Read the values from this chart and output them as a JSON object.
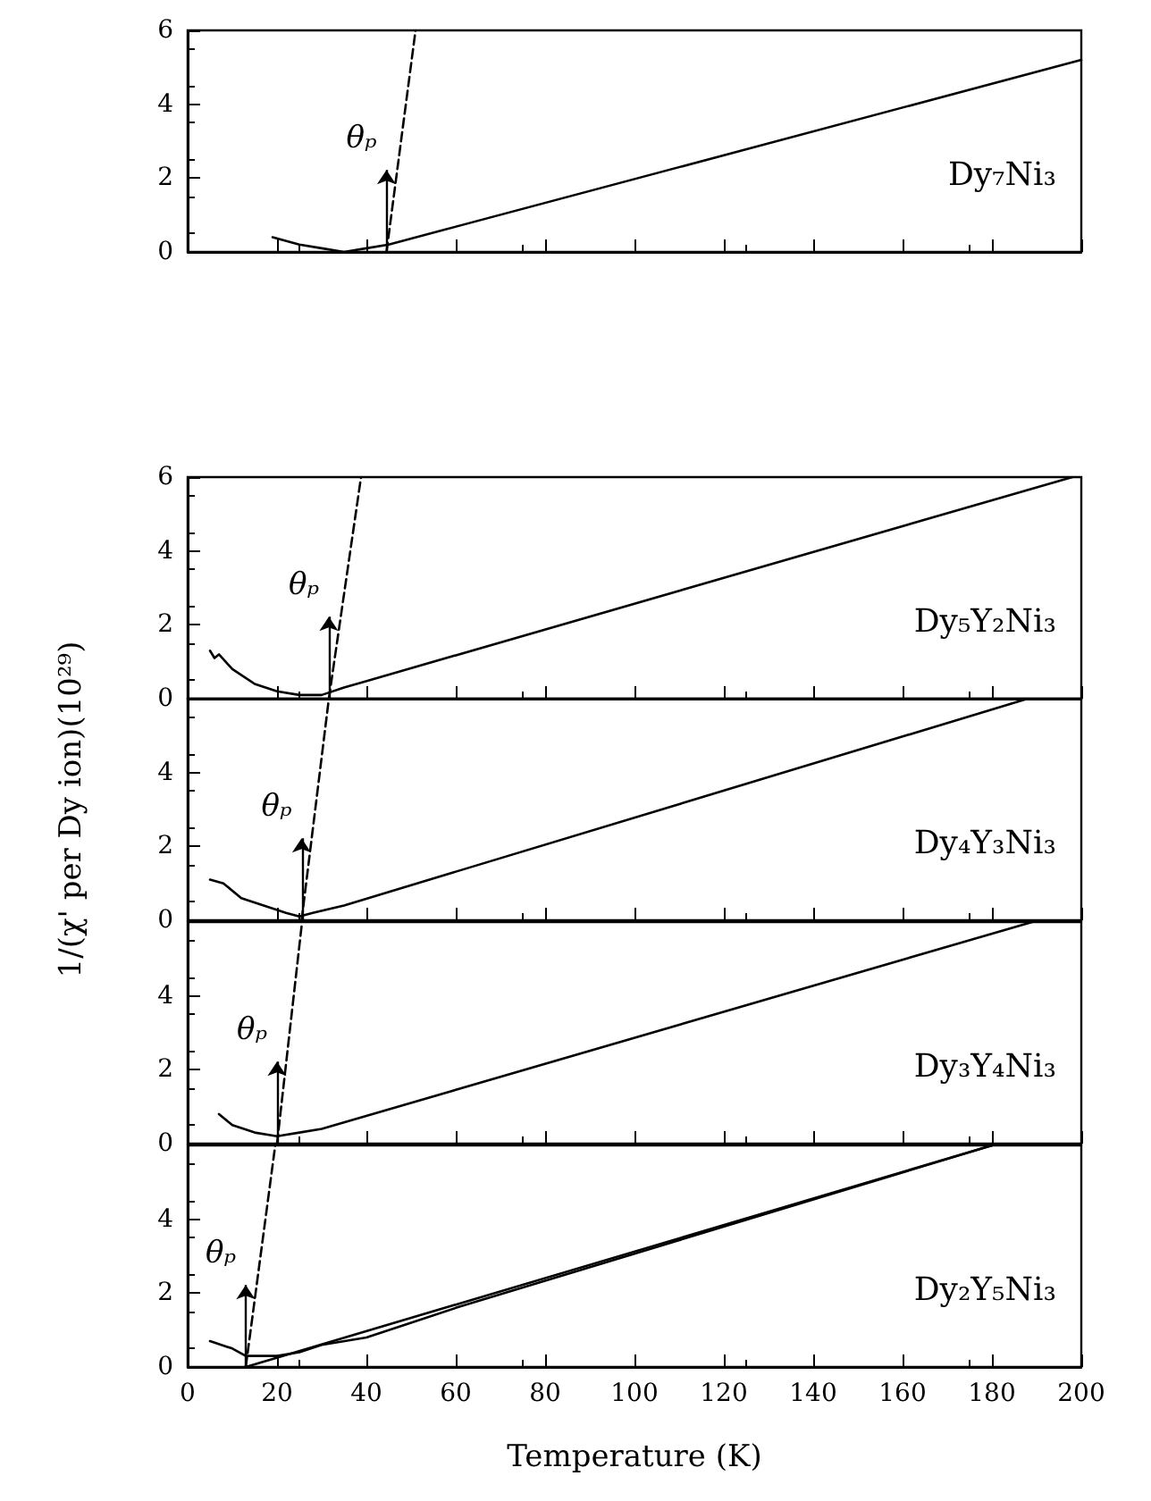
{
  "chart_data": [
    {
      "type": "line",
      "xlim": [
        0,
        200
      ],
      "xticks": [
        0,
        20,
        40,
        60,
        80,
        100,
        120,
        140,
        160,
        180,
        200
      ],
      "ylim": [
        0,
        6
      ],
      "yticks": [
        0,
        2,
        4,
        6
      ],
      "tick_labels": "y",
      "marker": "none",
      "annotations": [
        "Dy₇Ni₃",
        {
          "text": "θₚ",
          "x": 44.5,
          "y": 0
        }
      ],
      "series": [
        {
          "color": "#000000",
          "line_style": "solid",
          "x": [
            19,
            25,
            30,
            35,
            40,
            45,
            200
          ],
          "values": [
            0.4,
            0.2,
            0.1,
            0.0,
            0.1,
            0.2,
            5.2
          ]
        },
        {
          "color": "#000000",
          "line_style": "dashed",
          "x": [
            44.5,
            51
          ],
          "values": [
            0,
            6
          ]
        }
      ]
    },
    {
      "type": "line",
      "xlim": [
        0,
        200
      ],
      "xticks": [
        0,
        20,
        40,
        60,
        80,
        100,
        120,
        140,
        160,
        180,
        200
      ],
      "ylim": [
        0,
        6
      ],
      "yticks": [
        0,
        2,
        4,
        6
      ],
      "tick_labels": "y",
      "marker": "none",
      "annotations": [
        "Dy₅Y₂Ni₃",
        {
          "text": "θₚ",
          "x": 31.6,
          "y": 0
        }
      ],
      "series": [
        {
          "color": "#000000",
          "line_style": "solid",
          "x": [
            5,
            6,
            7,
            10,
            15,
            20,
            25,
            30,
            35,
            198
          ],
          "values": [
            1.3,
            1.1,
            1.2,
            0.8,
            0.4,
            0.2,
            0.1,
            0.1,
            0.3,
            6
          ]
        },
        {
          "color": "#000000",
          "line_style": "dashed",
          "x": [
            31.6,
            38.8
          ],
          "values": [
            0,
            6
          ]
        }
      ]
    },
    {
      "type": "line",
      "xlim": [
        0,
        200
      ],
      "xticks": [
        0,
        20,
        40,
        60,
        80,
        100,
        120,
        140,
        160,
        180,
        200
      ],
      "ylim": [
        0,
        6
      ],
      "yticks": [
        0,
        2,
        4
      ],
      "tick_labels": "y",
      "marker": "none",
      "ylabel": "1/(χ' per Dy ion)(10²⁹)",
      "annotations": [
        "Dy₄Y₃Ni₃",
        {
          "text": "θₚ",
          "x": 25.5,
          "y": 0
        }
      ],
      "series": [
        {
          "color": "#000000",
          "line_style": "solid",
          "x": [
            5,
            8,
            12,
            17,
            22,
            25,
            28,
            35,
            188
          ],
          "values": [
            1.1,
            1.0,
            0.6,
            0.4,
            0.2,
            0.1,
            0.2,
            0.4,
            6
          ]
        },
        {
          "color": "#000000",
          "line_style": "dashed",
          "x": [
            25.5,
            31.6
          ],
          "values": [
            0,
            6
          ]
        }
      ]
    },
    {
      "type": "line",
      "xlim": [
        0,
        200
      ],
      "xticks": [
        0,
        20,
        40,
        60,
        80,
        100,
        120,
        140,
        160,
        180,
        200
      ],
      "ylim": [
        0,
        6
      ],
      "yticks": [
        0,
        2,
        4
      ],
      "tick_labels": "y",
      "marker": "none",
      "annotations": [
        "Dy₃Y₄Ni₃",
        {
          "text": "θₚ",
          "x": 20,
          "y": 0
        }
      ],
      "series": [
        {
          "color": "#000000",
          "line_style": "solid",
          "x": [
            7,
            10,
            15,
            20,
            25,
            30,
            189
          ],
          "values": [
            0.8,
            0.5,
            0.3,
            0.2,
            0.3,
            0.4,
            6
          ]
        },
        {
          "color": "#000000",
          "line_style": "dashed",
          "x": [
            20,
            25.6
          ],
          "values": [
            0,
            6
          ]
        }
      ]
    },
    {
      "type": "line",
      "xlim": [
        0,
        200
      ],
      "xticks": [
        0,
        20,
        40,
        60,
        80,
        100,
        120,
        140,
        160,
        180,
        200
      ],
      "ylim": [
        0,
        6
      ],
      "yticks": [
        0,
        2,
        4
      ],
      "marker": "none",
      "xlabel": "Temperature (K)",
      "annotations": [
        "Dy₂Y₅Ni₃",
        {
          "text": "θₚ",
          "x": 13,
          "y": 0
        }
      ],
      "series": [
        {
          "color": "#000000",
          "line_style": "solid",
          "x": [
            5,
            10,
            13,
            17,
            20,
            25,
            30,
            40,
            50,
            60,
            180
          ],
          "values": [
            0.7,
            0.5,
            0.3,
            0.3,
            0.3,
            0.4,
            0.6,
            0.8,
            1.2,
            1.6,
            6
          ]
        },
        {
          "color": "#000000",
          "line_style": "solid",
          "x": [
            13,
            180
          ],
          "values": [
            0,
            6
          ]
        },
        {
          "color": "#000000",
          "line_style": "dashed",
          "x": [
            13,
            19.6
          ],
          "values": [
            0,
            6
          ]
        }
      ]
    }
  ]
}
